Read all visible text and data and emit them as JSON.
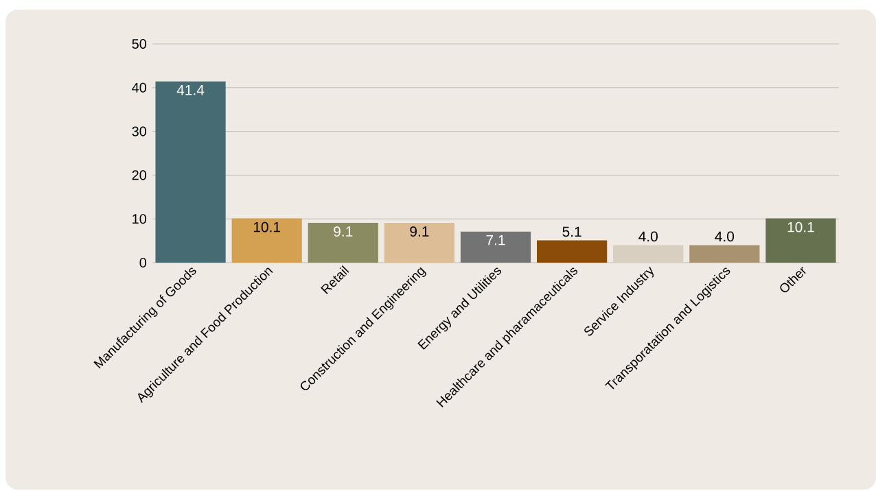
{
  "chart_data": {
    "type": "bar",
    "categories": [
      "Manufacturing of Goods",
      "Agriculture and Food Production",
      "Retail",
      "Construction and Engineering",
      "Energy and Utilities",
      "Healthcare and pharamaceuticals",
      "Service Industry",
      "Transporatation and Logistics",
      "Other"
    ],
    "values": [
      41.4,
      10.1,
      9.1,
      9.1,
      7.1,
      5.1,
      4.0,
      4.0,
      10.1
    ],
    "value_labels": [
      "41.4",
      "10.1",
      "9.1",
      "9.1",
      "7.1",
      "5.1",
      "4.0",
      "4.0",
      "10.1"
    ],
    "colors": [
      "#466b73",
      "#d4a152",
      "#8a8b60",
      "#dcbd96",
      "#737373",
      "#8b4c0a",
      "#d8cfc0",
      "#a9926f",
      "#66714f"
    ],
    "ylim": [
      0,
      50
    ],
    "yticks": [
      0,
      10,
      20,
      30,
      40,
      50
    ],
    "grid": "y"
  }
}
